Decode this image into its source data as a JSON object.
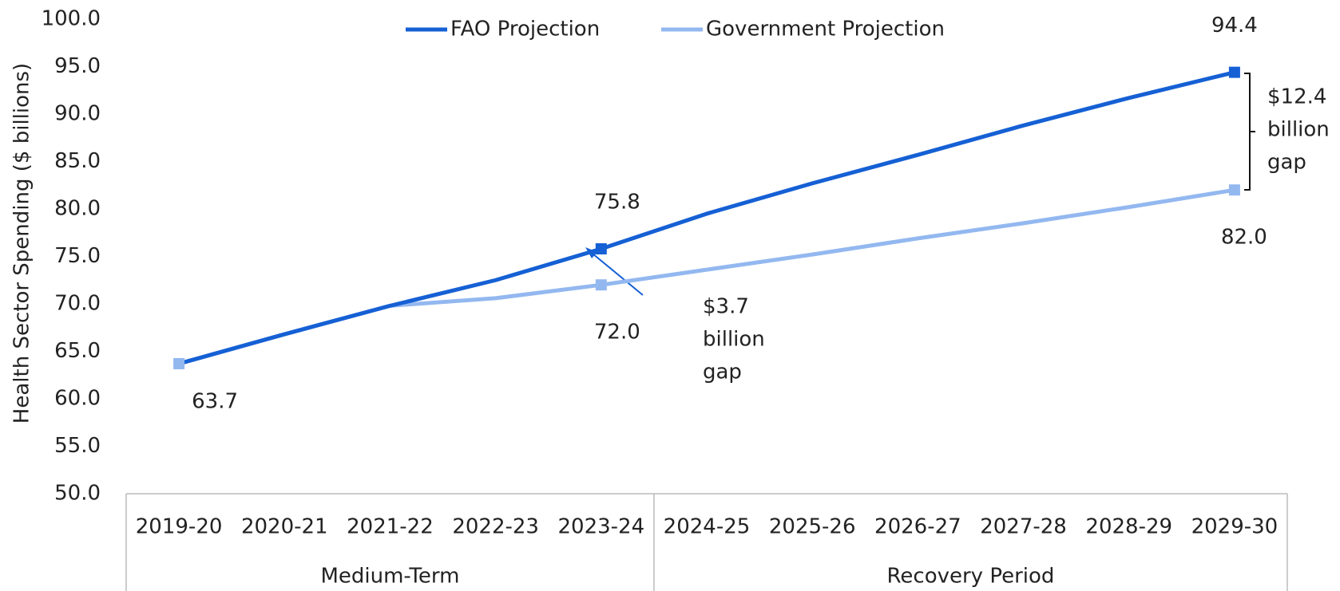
{
  "chart_data": {
    "type": "line",
    "y_label": "Health Sector Spending ($ billions)",
    "categories": [
      "2019-20",
      "2020-21",
      "2021-22",
      "2022-23",
      "2023-24",
      "2024-25",
      "2025-26",
      "2026-27",
      "2027-28",
      "2028-29",
      "2029-30"
    ],
    "groups": [
      {
        "label": "Medium-Term",
        "count": 5
      },
      {
        "label": "Recovery Period",
        "count": 6
      }
    ],
    "series": [
      {
        "name": "FAO Projection",
        "color": "#1560d4",
        "values": [
          63.7,
          66.8,
          69.8,
          72.5,
          75.8,
          79.5,
          82.7,
          85.7,
          88.8,
          91.7,
          94.4
        ],
        "value_labels": [
          null,
          null,
          null,
          null,
          "75.8",
          null,
          null,
          null,
          null,
          null,
          "94.4"
        ]
      },
      {
        "name": "Government Projection",
        "color": "#93b8f0",
        "values": [
          63.7,
          66.8,
          69.8,
          70.6,
          72.0,
          73.6,
          75.2,
          76.9,
          78.5,
          80.2,
          82.0
        ],
        "value_labels": [
          "63.7",
          null,
          null,
          null,
          "72.0",
          null,
          null,
          null,
          null,
          null,
          "82.0"
        ]
      }
    ],
    "ylim": [
      50,
      100
    ],
    "yticks": [
      {
        "value": 50,
        "label": "50.0"
      },
      {
        "value": 55,
        "label": "55.0"
      },
      {
        "value": 60,
        "label": "60.0"
      },
      {
        "value": 65,
        "label": "65.0"
      },
      {
        "value": 70,
        "label": "70.0"
      },
      {
        "value": 75,
        "label": "75.0"
      },
      {
        "value": 80,
        "label": "80.0"
      },
      {
        "value": 85,
        "label": "85.0"
      },
      {
        "value": 90,
        "label": "90.0"
      },
      {
        "value": 95,
        "label": "95.0"
      },
      {
        "value": 100,
        "label": "100.0"
      }
    ],
    "legend": "top",
    "annotations": [
      {
        "lines": [
          "$3.7",
          "billion",
          "gap"
        ]
      },
      {
        "lines": [
          "$12.4",
          "billion",
          "gap"
        ]
      }
    ]
  }
}
